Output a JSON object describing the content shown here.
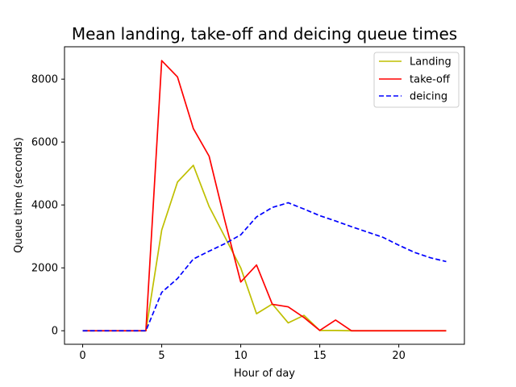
{
  "chart_data": {
    "type": "line",
    "title": "Mean landing, take-off and deicing queue times",
    "xlabel": "Hour of day",
    "ylabel": "Queue time (seconds)",
    "xlim": [
      -1.15,
      24.15
    ],
    "ylim": [
      -430,
      9030
    ],
    "xticks": [
      0,
      5,
      10,
      15,
      20
    ],
    "yticks": [
      0,
      2000,
      4000,
      6000,
      8000
    ],
    "grid": false,
    "legend_position": "top-right",
    "x": [
      0,
      1,
      2,
      3,
      4,
      5,
      6,
      7,
      8,
      9,
      10,
      11,
      12,
      13,
      14,
      15,
      16,
      17,
      18,
      19,
      20,
      21,
      22,
      23
    ],
    "series": [
      {
        "name": "Landing",
        "color": "#bfbf00",
        "dash": "solid",
        "values": [
          0,
          0,
          0,
          0,
          0,
          3200,
          4730,
          5260,
          3950,
          2980,
          2000,
          540,
          850,
          250,
          490,
          10,
          10,
          0,
          0,
          0,
          0,
          0,
          0,
          0
        ]
      },
      {
        "name": "take-off",
        "color": "#ff0000",
        "dash": "solid",
        "values": [
          0,
          0,
          0,
          0,
          0,
          8590,
          8070,
          6430,
          5550,
          3490,
          1550,
          2090,
          840,
          760,
          420,
          10,
          340,
          0,
          0,
          0,
          0,
          0,
          0,
          0
        ]
      },
      {
        "name": "deicing",
        "color": "#0000ff",
        "dash": "dashed",
        "values": [
          0,
          0,
          0,
          0,
          0,
          1220,
          1660,
          2280,
          2530,
          2770,
          3050,
          3620,
          3920,
          4070,
          3870,
          3660,
          3490,
          3310,
          3140,
          2970,
          2720,
          2490,
          2320,
          2200
        ]
      }
    ]
  }
}
